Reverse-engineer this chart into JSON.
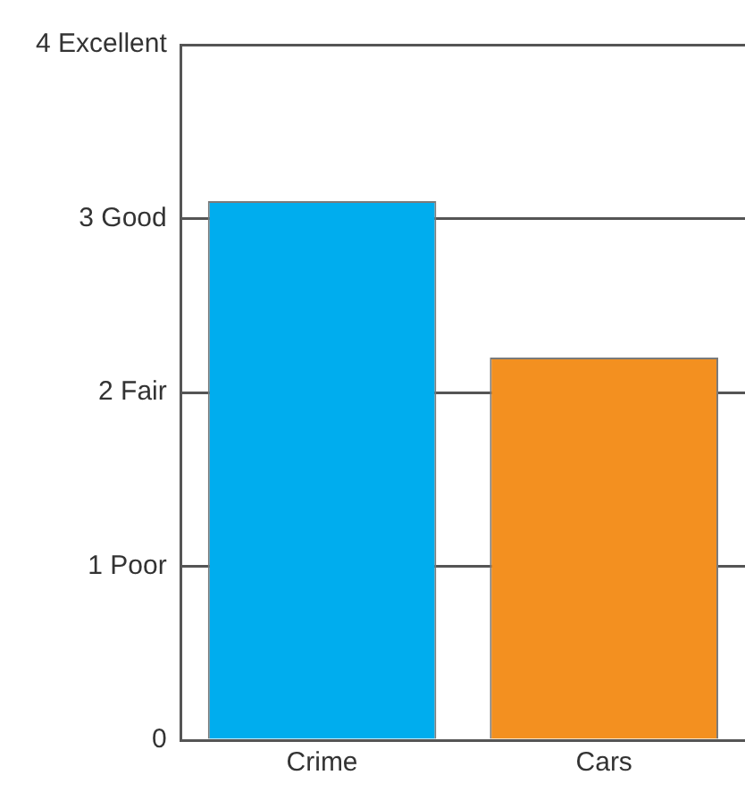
{
  "chart_data": {
    "type": "bar",
    "categories": [
      "Crime",
      "Cars"
    ],
    "values": [
      3.1,
      2.2
    ],
    "colors": [
      "#00adee",
      "#f39020"
    ],
    "ylim": [
      0,
      4
    ],
    "yticks": [
      0,
      {
        "value": 1,
        "label": "1 Poor"
      },
      {
        "value": 2,
        "label": "2 Fair"
      },
      {
        "value": 3,
        "label": "3 Good"
      },
      {
        "value": 4,
        "label": "4 Excellent"
      }
    ],
    "grid": "y"
  }
}
